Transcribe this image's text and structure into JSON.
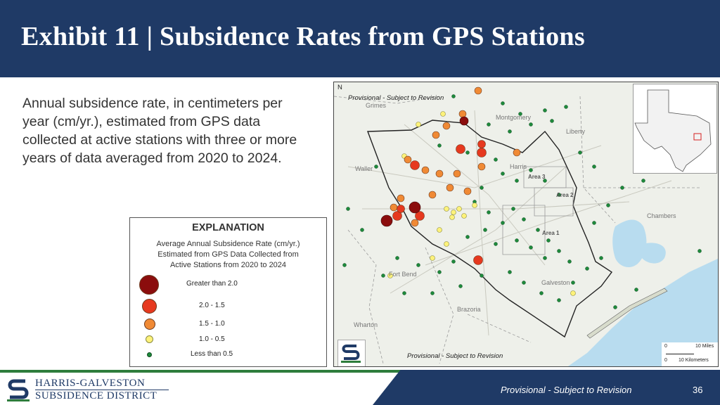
{
  "header": {
    "title": "Exhibit 11 | Subsidence Rates from GPS Stations"
  },
  "description": "Annual subsidence rate, in centimeters per year (cm/yr.), estimated from GPS data collected at active stations with three or more years of data averaged from 2020 to 2024.",
  "legend": {
    "title": "EXPLANATION",
    "subtitle_line1": "Average Annual Subsidence Rate (cm/yr.)",
    "subtitle_line2": "Estimated from GPS Data Collected from",
    "subtitle_line3": "Active Stations from 2020 to 2024",
    "classes": [
      {
        "label": "Greater than 2.0",
        "color": "#8b0d0d"
      },
      {
        "label": "2.0 - 1.5",
        "color": "#e6391f"
      },
      {
        "label": "1.5 - 1.0",
        "color": "#f08a35"
      },
      {
        "label": "1.0 - 0.5",
        "color": "#fdf27a"
      },
      {
        "label": "Less than 0.5",
        "color": "#1e8a3c"
      }
    ]
  },
  "map": {
    "provisional_top": "Provisional - Subject to Revision",
    "provisional_bottom": "Provisional - Subject to Revision",
    "north_label": "N",
    "counties": [
      "Grimes",
      "Montgomery",
      "Liberty",
      "Waller",
      "Harris",
      "Chambers",
      "Fort Bend",
      "Galveston",
      "Brazoria",
      "Wharton"
    ],
    "areas": [
      "Area 3",
      "Area 2",
      "Area 1"
    ],
    "scale_miles": "10 Miles",
    "scale_km": "10 Kilometers",
    "scale_zero": "0",
    "water_color": "#b8dcef"
  },
  "footer": {
    "org_line1": "HARRIS-GALVESTON",
    "org_line2": "SUBSIDENCE DISTRICT",
    "provisional": "Provisional - Subject to Revision",
    "page_number": "36"
  }
}
